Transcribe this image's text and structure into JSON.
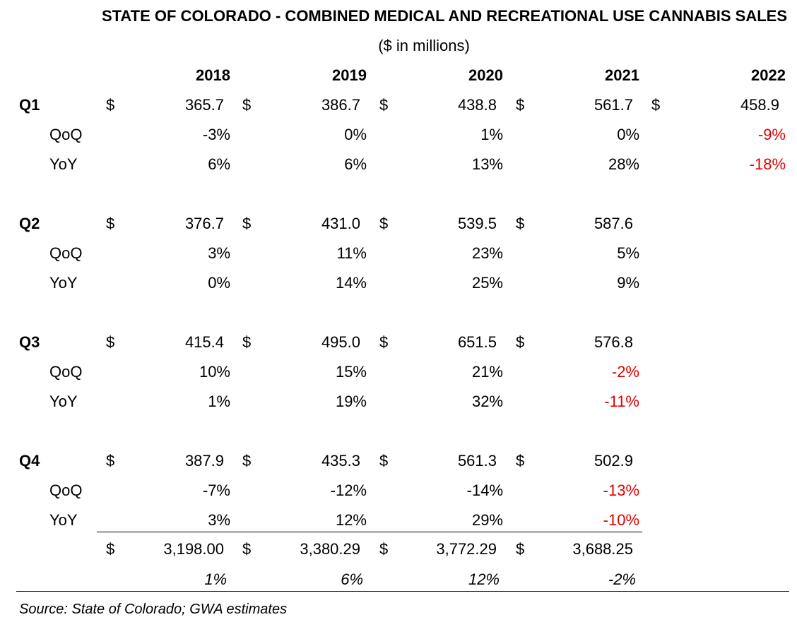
{
  "title": "STATE OF COLORADO - COMBINED MEDICAL AND RECREATIONAL USE CANNABIS SALES",
  "subtitle": "($ in millions)",
  "currency_symbol": "$",
  "years": [
    "2018",
    "2019",
    "2020",
    "2021",
    "2022"
  ],
  "quarters": [
    {
      "label": "Q1",
      "sales": [
        "365.7",
        "386.7",
        "438.8",
        "561.7",
        "458.9"
      ],
      "qoq_label": "QoQ",
      "qoq": [
        "-3%",
        "0%",
        "1%",
        "0%",
        "-9%"
      ],
      "yoy_label": "YoY",
      "yoy": [
        "6%",
        "6%",
        "13%",
        "28%",
        "-18%"
      ]
    },
    {
      "label": "Q2",
      "sales": [
        "376.7",
        "431.0",
        "539.5",
        "587.6"
      ],
      "qoq_label": "QoQ",
      "qoq": [
        "3%",
        "11%",
        "23%",
        "5%"
      ],
      "yoy_label": "YoY",
      "yoy": [
        "0%",
        "14%",
        "25%",
        "9%"
      ]
    },
    {
      "label": "Q3",
      "sales": [
        "415.4",
        "495.0",
        "651.5",
        "576.8"
      ],
      "qoq_label": "QoQ",
      "qoq": [
        "10%",
        "15%",
        "21%",
        "-2%"
      ],
      "yoy_label": "YoY",
      "yoy": [
        "1%",
        "19%",
        "32%",
        "-11%"
      ]
    },
    {
      "label": "Q4",
      "sales": [
        "387.9",
        "435.3",
        "561.3",
        "502.9"
      ],
      "qoq_label": "QoQ",
      "qoq": [
        "-7%",
        "-12%",
        "-14%",
        "-13%"
      ],
      "yoy_label": "YoY",
      "yoy": [
        "3%",
        "12%",
        "29%",
        "-10%"
      ]
    }
  ],
  "totals": [
    "3,198.00",
    "3,380.29",
    "3,772.29",
    "3,688.25"
  ],
  "annual_growth": [
    "1%",
    "6%",
    "12%",
    "-2%"
  ],
  "negative_color": "#e00000",
  "source": "Source: State of Colorado; GWA estimates"
}
